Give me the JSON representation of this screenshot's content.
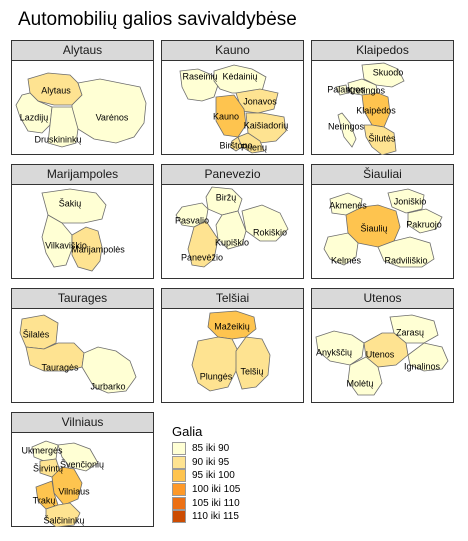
{
  "title": "Automobilių galios savivaldybėse",
  "colors": {
    "strip_bg": "#d9d9d9",
    "border": "#333333",
    "class_1": "#ffffd4",
    "class_2": "#fee391",
    "class_3": "#fec44f",
    "class_4": "#fe9929",
    "class_5": "#ec7014",
    "class_6": "#cc4c02"
  },
  "legend": {
    "title": "Galia",
    "items": [
      {
        "label": "85 iki 90",
        "color": "#ffffd4"
      },
      {
        "label": "90 iki 95",
        "color": "#fee391"
      },
      {
        "label": "95 iki 100",
        "color": "#fec44f"
      },
      {
        "label": "100 iki 105",
        "color": "#fe9929"
      },
      {
        "label": "105 iki 110",
        "color": "#ec7014"
      },
      {
        "label": "110 iki 115",
        "color": "#cc4c02"
      }
    ]
  },
  "panels": [
    {
      "name": "Alytaus",
      "municipalities": [
        {
          "label": "Alytaus",
          "color": "#fee391"
        },
        {
          "label": "Lazdijų",
          "color": "#ffffd4"
        },
        {
          "label": "Varėnos",
          "color": "#ffffd4"
        },
        {
          "label": "Druskininkų",
          "color": "#ffffd4"
        }
      ]
    },
    {
      "name": "Kauno",
      "municipalities": [
        {
          "label": "Raseinių",
          "color": "#ffffd4"
        },
        {
          "label": "Kėdainių",
          "color": "#ffffd4"
        },
        {
          "label": "Jonavos",
          "color": "#fee391"
        },
        {
          "label": "Kauno",
          "color": "#fec44f"
        },
        {
          "label": "Kaišiadorių",
          "color": "#fee391"
        },
        {
          "label": "Birštono",
          "color": "#fee391"
        },
        {
          "label": "Prienų",
          "color": "#fee391"
        }
      ]
    },
    {
      "name": "Klaipedos",
      "municipalities": [
        {
          "label": "Skuodo",
          "color": "#ffffd4"
        },
        {
          "label": "Palangos",
          "color": "#ffffd4"
        },
        {
          "label": "Kretingos",
          "color": "#ffffd4"
        },
        {
          "label": "Klaipėdos",
          "color": "#fec44f"
        },
        {
          "label": "Neringos",
          "color": "#ffffd4"
        },
        {
          "label": "Šilutės",
          "color": "#fee391"
        }
      ]
    },
    {
      "name": "Marijampoles",
      "municipalities": [
        {
          "label": "Šakių",
          "color": "#ffffd4"
        },
        {
          "label": "Vilkaviškio",
          "color": "#ffffd4"
        },
        {
          "label": "Marijampolės",
          "color": "#fee391"
        }
      ]
    },
    {
      "name": "Panevezio",
      "municipalities": [
        {
          "label": "Biržų",
          "color": "#ffffd4"
        },
        {
          "label": "Pasvalio",
          "color": "#ffffd4"
        },
        {
          "label": "Rokiškio",
          "color": "#ffffd4"
        },
        {
          "label": "Kupiškio",
          "color": "#ffffd4"
        },
        {
          "label": "Panevėžio",
          "color": "#fee391"
        }
      ]
    },
    {
      "name": "Šiauliai",
      "municipalities": [
        {
          "label": "Akmenės",
          "color": "#ffffd4"
        },
        {
          "label": "Joniškio",
          "color": "#ffffd4"
        },
        {
          "label": "Pakruojo",
          "color": "#ffffd4"
        },
        {
          "label": "Šiaulių",
          "color": "#fec44f"
        },
        {
          "label": "Kelmės",
          "color": "#ffffd4"
        },
        {
          "label": "Radviliškio",
          "color": "#ffffd4"
        }
      ]
    },
    {
      "name": "Taurages",
      "municipalities": [
        {
          "label": "Šilalės",
          "color": "#fee391"
        },
        {
          "label": "Tauragės",
          "color": "#fee391"
        },
        {
          "label": "Jurbarko",
          "color": "#ffffd4"
        }
      ]
    },
    {
      "name": "Telšiai",
      "municipalities": [
        {
          "label": "Mažeikių",
          "color": "#fec44f"
        },
        {
          "label": "Plungės",
          "color": "#fee391"
        },
        {
          "label": "Telšių",
          "color": "#fee391"
        }
      ]
    },
    {
      "name": "Utenos",
      "municipalities": [
        {
          "label": "Zarasų",
          "color": "#ffffd4"
        },
        {
          "label": "Anykščių",
          "color": "#ffffd4"
        },
        {
          "label": "Utenos",
          "color": "#fee391"
        },
        {
          "label": "Ignalinos",
          "color": "#ffffd4"
        },
        {
          "label": "Molėtų",
          "color": "#ffffd4"
        }
      ]
    },
    {
      "name": "Vilniaus",
      "municipalities": [
        {
          "label": "Ukmergės",
          "color": "#ffffd4"
        },
        {
          "label": "Širvintų",
          "color": "#fee391"
        },
        {
          "label": "Švenčionių",
          "color": "#ffffd4"
        },
        {
          "label": "Vilniaus",
          "color": "#fec44f"
        },
        {
          "label": "Trakų",
          "color": "#fec44f"
        },
        {
          "label": "Šalčininkų",
          "color": "#fee391"
        }
      ]
    }
  ]
}
